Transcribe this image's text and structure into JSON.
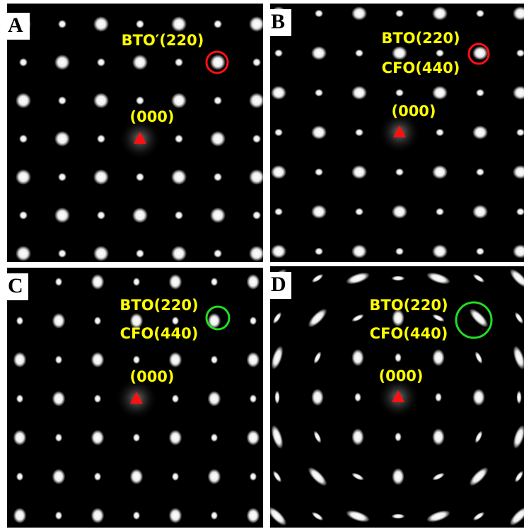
{
  "panels": [
    {
      "letter": "A",
      "labels": [
        "BTO′(220)",
        "(000)"
      ]
    },
    {
      "letter": "B",
      "labels": [
        "BTO(220)",
        "CFO(440)",
        "(000)"
      ]
    },
    {
      "letter": "C",
      "labels": [
        "BTO(220)",
        "CFO(440)",
        "(000)"
      ]
    },
    {
      "letter": "D",
      "labels": [
        "BTO(220)",
        "CFO(440)",
        "(000)"
      ]
    }
  ]
}
